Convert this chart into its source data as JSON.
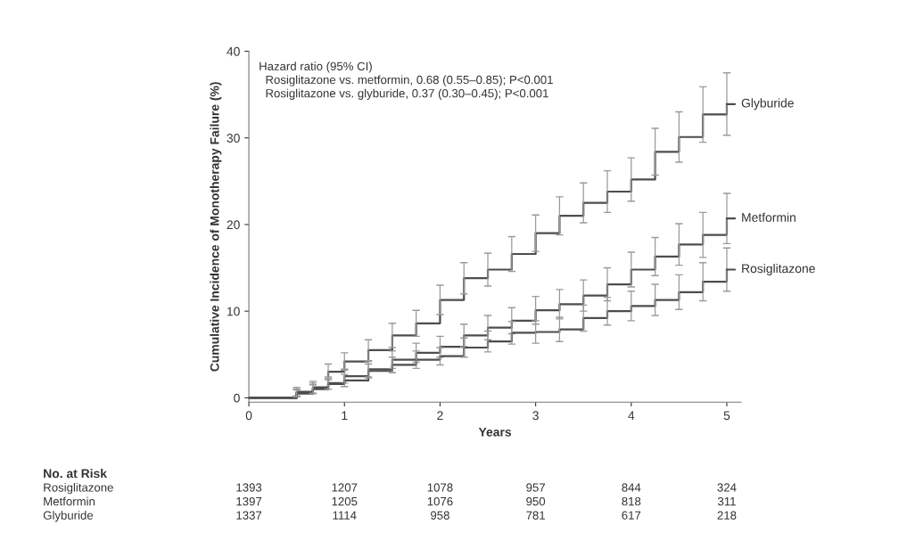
{
  "chart_data": {
    "type": "step",
    "xlabel": "Years",
    "ylabel": "Cumulative Incidence of Monotherapy Failure (%)",
    "x": [
      0,
      0.5,
      0.67,
      0.83,
      1,
      1.25,
      1.5,
      1.75,
      2,
      2.25,
      2.5,
      2.75,
      3,
      3.25,
      3.5,
      3.75,
      4,
      4.25,
      4.5,
      4.75,
      5
    ],
    "series": [
      {
        "name": "Glyburide",
        "color": "#4d4d4d",
        "values": [
          0,
          0.7,
          1.2,
          3.0,
          4.2,
          5.5,
          7.2,
          8.6,
          11.3,
          13.8,
          14.8,
          16.6,
          19.0,
          21.0,
          22.5,
          23.8,
          25.2,
          28.4,
          30.1,
          32.7,
          33.9
        ],
        "errors": [
          null,
          0.5,
          0.7,
          0.9,
          1.0,
          1.2,
          1.4,
          1.5,
          1.7,
          1.8,
          1.9,
          2.0,
          2.1,
          2.2,
          2.3,
          2.4,
          2.5,
          2.7,
          2.9,
          3.2,
          3.6
        ]
      },
      {
        "name": "Metformin",
        "color": "#4d4d4d",
        "values": [
          0,
          0.6,
          1.1,
          1.7,
          2.5,
          3.3,
          4.4,
          5.2,
          5.9,
          7.2,
          8.1,
          8.9,
          10.1,
          10.8,
          11.8,
          13.1,
          14.8,
          16.3,
          17.7,
          18.8,
          20.7
        ],
        "errors": [
          null,
          0.4,
          0.6,
          0.7,
          0.8,
          0.9,
          1.0,
          1.1,
          1.2,
          1.3,
          1.4,
          1.5,
          1.6,
          1.7,
          1.8,
          1.9,
          2.0,
          2.2,
          2.4,
          2.6,
          2.9
        ]
      },
      {
        "name": "Rosiglitazone",
        "color": "#4d4d4d",
        "values": [
          0,
          0.5,
          1.0,
          1.6,
          2.0,
          3.1,
          3.8,
          4.4,
          4.8,
          5.8,
          6.5,
          7.5,
          7.6,
          7.9,
          9.2,
          10.0,
          10.6,
          11.3,
          12.2,
          13.4,
          14.8
        ],
        "errors": [
          null,
          0.4,
          0.5,
          0.6,
          0.7,
          0.8,
          0.9,
          1.0,
          1.0,
          1.1,
          1.2,
          1.3,
          1.3,
          1.4,
          1.5,
          1.6,
          1.7,
          1.8,
          2.0,
          2.2,
          2.5
        ]
      }
    ],
    "xlim": [
      0,
      5.15
    ],
    "xticks": [
      0,
      1,
      2,
      3,
      4,
      5
    ],
    "ylim": [
      -0.5,
      40
    ],
    "yticks": [
      0,
      10,
      20,
      30,
      40
    ],
    "grid": false,
    "legend": "right",
    "annotations": [
      "Hazard ratio (95% CI)\n  Rosiglitazone vs. metformin, 0.68 (0.55–0.85); P<0.001\n  Rosiglitazone vs. glyburide, 0.37 (0.30–0.45); P<0.001",
      "No. at Risk",
      "Rosiglitazone 1393 1207 1078 957 844 324",
      "Metformin 1397 1205 1076 950 818 311",
      "Glyburide 1337 1114 958 781 617 218"
    ]
  }
}
